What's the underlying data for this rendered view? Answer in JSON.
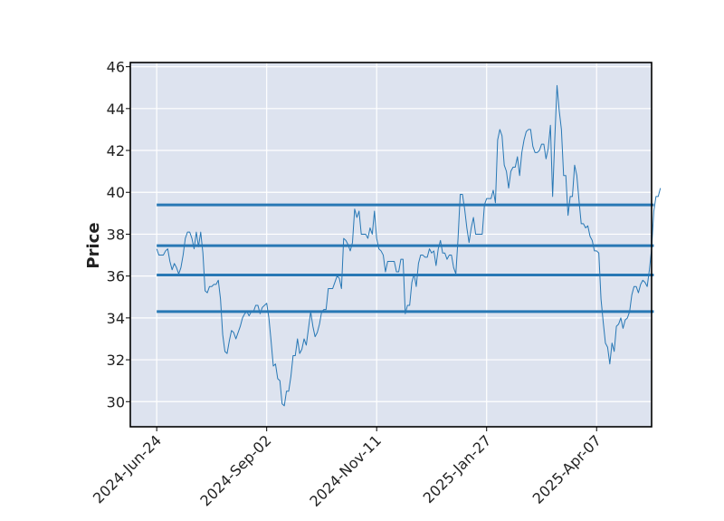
{
  "chart_data": {
    "type": "line",
    "title": "",
    "xlabel": "",
    "ylabel": "Price",
    "ylim": [
      28.8,
      46.2
    ],
    "y_ticks": [
      30,
      32,
      34,
      36,
      38,
      40,
      42,
      44,
      46
    ],
    "x_ticks": [
      "2024-Jun-24",
      "2024-Sep-02",
      "2024-Nov-11",
      "2025-Jan-27",
      "2025-Apr-07"
    ],
    "x_tick_index": [
      0,
      50,
      100,
      150,
      200
    ],
    "x_range_index": [
      -12,
      225
    ],
    "grid": true,
    "plot_background": "#dde3ef",
    "line_color": "#2878b5",
    "series": [
      {
        "values": [
          37.3,
          37.0,
          37.0,
          37.0,
          37.2,
          37.3,
          36.7,
          36.3,
          36.6,
          36.4,
          36.1,
          36.4,
          37.0,
          37.8,
          38.1,
          38.1,
          37.8,
          37.3,
          38.1,
          37.4,
          38.1,
          37.1,
          35.3,
          35.2,
          35.5,
          35.5,
          35.6,
          35.6,
          35.8,
          34.9,
          33.2,
          32.4,
          32.3,
          32.9,
          33.4,
          33.3,
          33.0,
          33.3,
          33.6,
          34.0,
          34.2,
          34.3,
          34.1,
          34.3,
          34.3,
          34.6,
          34.6,
          34.2,
          34.5,
          34.6,
          34.7,
          34.0,
          32.9,
          31.7,
          31.8,
          31.1,
          31.0,
          29.9,
          29.8,
          30.5,
          30.5,
          31.2,
          32.2,
          32.2,
          33.0,
          32.3,
          32.5,
          33.0,
          32.7,
          33.5,
          34.3,
          33.6,
          33.1,
          33.3,
          33.7,
          34.3,
          34.4,
          34.4,
          35.4,
          35.4,
          35.4,
          35.7,
          36.0,
          35.9,
          35.4,
          37.8,
          37.7,
          37.5,
          37.2,
          37.6,
          39.2,
          38.8,
          39.1,
          38.0,
          38.0,
          38.0,
          37.8,
          38.3,
          38.0,
          39.1,
          37.8,
          37.3,
          37.2,
          37.0,
          36.2,
          36.7,
          36.7,
          36.7,
          36.7,
          36.2,
          36.2,
          36.8,
          36.8,
          34.2,
          34.6,
          34.6,
          35.7,
          36.1,
          35.5,
          36.6,
          37.0,
          37.0,
          36.9,
          36.9,
          37.3,
          37.1,
          37.2,
          36.5,
          37.3,
          37.7,
          37.1,
          37.1,
          36.8,
          37.0,
          37.0,
          36.4,
          36.1,
          37.8,
          39.9,
          39.9,
          39.2,
          38.3,
          37.6,
          38.3,
          38.8,
          38.0,
          38.0,
          38.0,
          38.0,
          39.4,
          39.7,
          39.7,
          39.7,
          40.1,
          39.5,
          42.5,
          43.0,
          42.7,
          41.3,
          41.0,
          40.2,
          41.0,
          41.2,
          41.2,
          41.7,
          40.8,
          41.9,
          42.5,
          42.9,
          43.0,
          43.0,
          42.2,
          41.9,
          41.9,
          42.0,
          42.3,
          42.3,
          41.6,
          42.1,
          43.2,
          39.8,
          42.6,
          45.1,
          43.9,
          43.0,
          40.8,
          40.8,
          38.9,
          39.8,
          39.8,
          41.3,
          40.8,
          39.6,
          38.5,
          38.5,
          38.3,
          38.4,
          37.9,
          37.7,
          37.2,
          37.2,
          37.1,
          34.9,
          33.8,
          32.8,
          32.6,
          31.8,
          32.8,
          32.4,
          33.6,
          33.7,
          34.0,
          33.5,
          33.9,
          34.0,
          34.3,
          35.1,
          35.5,
          35.5,
          35.2,
          35.6,
          35.8,
          35.7,
          35.5,
          36.3,
          37.3,
          39.1,
          39.8,
          39.8,
          40.2
        ],
        "horizontal_lines": [
          39.4,
          37.45,
          36.05,
          34.3
        ],
        "horizontal_line_span_index": [
          0,
          226
        ]
      }
    ]
  }
}
